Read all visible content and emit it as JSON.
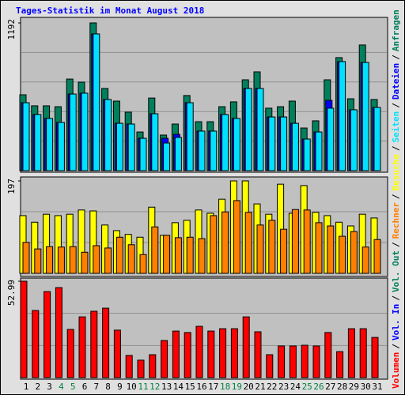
{
  "title": "Tages-Statistik im Monat August 2018",
  "legend_separator": "/",
  "chart_data": [
    {
      "type": "bar",
      "ylim": [
        0,
        1192
      ],
      "yticks": [
        1192
      ],
      "series": [
        {
          "name": "Anfragen",
          "color": "#00805c",
          "values": [
            612,
            523,
            523,
            516,
            739,
            714,
            1192,
            663,
            561,
            472,
            312,
            586,
            287,
            376,
            606,
            395,
            395,
            516,
            555,
            733,
            797,
            504,
            516,
            561,
            344,
            402,
            733,
            912,
            580,
            1014,
            574
          ]
        },
        {
          "name": "Dateien",
          "color": "#0000ff",
          "values": [
            548,
            453,
            421,
            389,
            618,
            625,
            1103,
            574,
            382,
            376,
            261,
            459,
            261,
            293,
            548,
            319,
            319,
            453,
            421,
            663,
            663,
            433,
            433,
            382,
            255,
            312,
            567,
            880,
            491,
            873,
            510
          ]
        },
        {
          "name": "Seiten",
          "color": "#00e0ff",
          "values": [
            548,
            453,
            421,
            389,
            618,
            625,
            1103,
            574,
            382,
            376,
            261,
            459,
            223,
            268,
            548,
            319,
            319,
            453,
            421,
            663,
            663,
            433,
            433,
            382,
            255,
            312,
            504,
            880,
            491,
            873,
            510
          ]
        }
      ]
    },
    {
      "type": "bar",
      "ylim": [
        0,
        197
      ],
      "yticks": [
        197
      ],
      "series": [
        {
          "name": "Besuche",
          "color": "#ffff00",
          "values": [
            123,
            109,
            126,
            123,
            126,
            135,
            133,
            103,
            91,
            83,
            77,
            141,
            81,
            108,
            113,
            135,
            128,
            158,
            197,
            197,
            148,
            126,
            190,
            128,
            187,
            130,
            123,
            109,
            101,
            126,
            118
          ]
        },
        {
          "name": "Rechner",
          "color": "#ff8000",
          "values": [
            66,
            52,
            57,
            56,
            57,
            45,
            59,
            54,
            77,
            61,
            40,
            99,
            81,
            76,
            77,
            74,
            123,
            131,
            155,
            130,
            103,
            113,
            94,
            136,
            135,
            108,
            101,
            79,
            89,
            56,
            72
          ]
        }
      ]
    },
    {
      "type": "bar",
      "ylim": [
        0,
        52.99
      ],
      "yticks": [
        52.99
      ],
      "categories": [
        "1",
        "2",
        "3",
        "4",
        "5",
        "6",
        "7",
        "8",
        "9",
        "10",
        "11",
        "12",
        "13",
        "14",
        "15",
        "16",
        "17",
        "18",
        "19",
        "20",
        "21",
        "22",
        "23",
        "24",
        "25",
        "26",
        "27",
        "28",
        "29",
        "30",
        "31"
      ],
      "category_colors": [
        "#000000",
        "#000000",
        "#000000",
        "#008040",
        "#008040",
        "#000000",
        "#000000",
        "#000000",
        "#000000",
        "#000000",
        "#008040",
        "#008040",
        "#000000",
        "#000000",
        "#000000",
        "#000000",
        "#000000",
        "#008040",
        "#008040",
        "#000000",
        "#000000",
        "#000000",
        "#000000",
        "#000000",
        "#008040",
        "#008040",
        "#000000",
        "#000000",
        "#000000",
        "#000000",
        "#000000"
      ],
      "series": [
        {
          "name": "Volumen",
          "color": "#ff0000",
          "values": [
            52.99,
            36.9,
            47.3,
            49.5,
            26.5,
            33.4,
            36.5,
            38.2,
            26.1,
            12.2,
            9.6,
            12.6,
            20.4,
            25.6,
            24.8,
            28.2,
            25.6,
            26.9,
            26.9,
            33.4,
            25.2,
            12.6,
            17.4,
            17.4,
            17.8,
            17.4,
            24.8,
            14.3,
            26.9,
            26.9,
            22.1
          ]
        },
        {
          "name": "Vol. In",
          "color": "#0000ff",
          "values": [
            0,
            0,
            0,
            0,
            0,
            0,
            0,
            0,
            0,
            0,
            0,
            0,
            0,
            0,
            0,
            0,
            0,
            0,
            0,
            0,
            0,
            0,
            0,
            0,
            0,
            0,
            0,
            0,
            0,
            0,
            0
          ]
        },
        {
          "name": "Vol. Out",
          "color": "#00805c",
          "values": [
            0,
            0,
            0,
            0,
            0,
            0,
            0,
            0,
            0,
            0,
            0,
            0,
            0,
            0,
            0,
            0,
            0,
            0,
            0,
            0,
            0,
            0,
            0,
            0,
            0,
            0,
            0,
            0,
            0,
            0,
            0
          ]
        }
      ]
    }
  ]
}
